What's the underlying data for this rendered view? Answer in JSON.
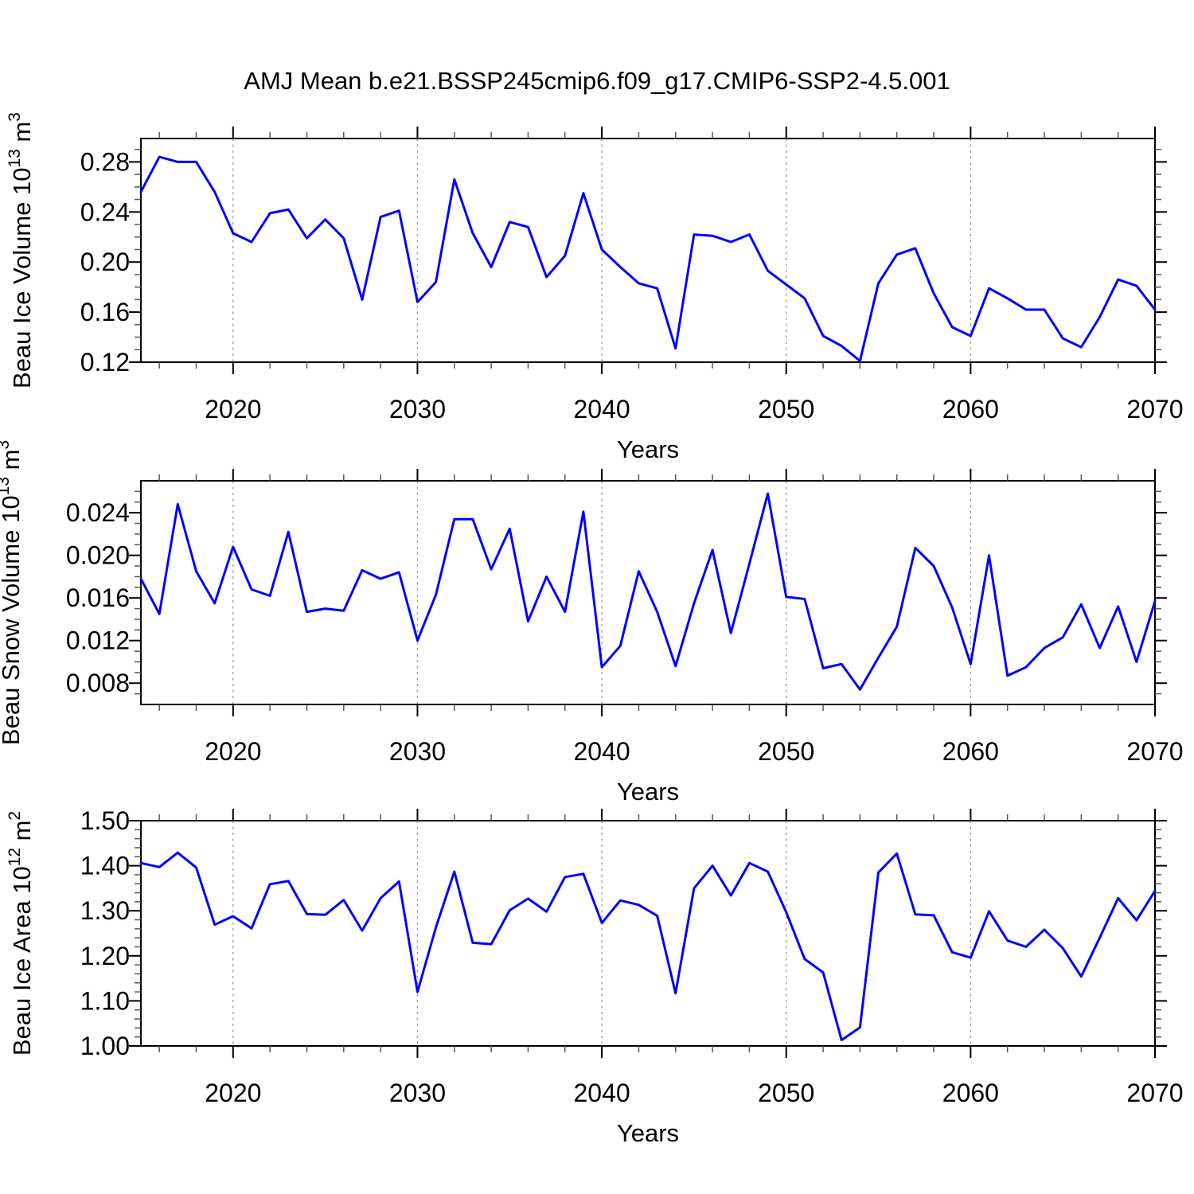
{
  "page": {
    "title": "AMJ Mean b.e21.BSSP245cmip6.f09_g17.CMIP6-SSP2-4.5.001",
    "background": "#ffffff"
  },
  "style": {
    "line_color": "#0000ff",
    "axis_color": "#000000",
    "grid_color": "#999999",
    "minor_tick_color": "#555555"
  },
  "x_axis": {
    "label": "Years",
    "years": [
      2015,
      2016,
      2017,
      2018,
      2019,
      2020,
      2021,
      2022,
      2023,
      2024,
      2025,
      2026,
      2027,
      2028,
      2029,
      2030,
      2031,
      2032,
      2033,
      2034,
      2035,
      2036,
      2037,
      2038,
      2039,
      2040,
      2041,
      2042,
      2043,
      2044,
      2045,
      2046,
      2047,
      2048,
      2049,
      2050,
      2051,
      2052,
      2053,
      2054,
      2055,
      2056,
      2057,
      2058,
      2059,
      2060,
      2061,
      2062,
      2063,
      2064,
      2065,
      2066,
      2067,
      2068,
      2069,
      2070
    ],
    "xlim": [
      2015,
      2070
    ],
    "tick_values": [
      2020,
      2030,
      2040,
      2050,
      2060,
      2070
    ],
    "tick_labels": [
      "2020",
      "2030",
      "2040",
      "2050",
      "2060",
      "2070"
    ],
    "minor_step_years": 2,
    "grid_values": [
      2020,
      2030,
      2040,
      2050,
      2060
    ]
  },
  "chart_data": [
    {
      "type": "line",
      "name": "beau-ice-volume",
      "ylabel_text": "Beau Ice Volume 10^13 m^3",
      "ylabel_parts": [
        {
          "text": "Beau Ice Volume 10"
        },
        {
          "sup": "13"
        },
        {
          "text": " m"
        },
        {
          "sup": "3"
        }
      ],
      "xlabel": "Years",
      "ylim": [
        0.12,
        0.2987
      ],
      "yticks": [
        {
          "value": 0.12,
          "label": "0.12"
        },
        {
          "value": 0.16,
          "label": "0.16"
        },
        {
          "value": 0.2,
          "label": "0.20"
        },
        {
          "value": 0.24,
          "label": "0.24"
        },
        {
          "value": 0.28,
          "label": "0.28"
        }
      ],
      "yminor_step": 0.01,
      "values": [
        0.256,
        0.284,
        0.28,
        0.28,
        0.256,
        0.223,
        0.216,
        0.239,
        0.242,
        0.219,
        0.234,
        0.219,
        0.17,
        0.236,
        0.241,
        0.168,
        0.184,
        0.266,
        0.223,
        0.196,
        0.232,
        0.228,
        0.188,
        0.205,
        0.255,
        0.21,
        0.196,
        0.183,
        0.179,
        0.131,
        0.222,
        0.221,
        0.216,
        0.222,
        0.193,
        0.182,
        0.171,
        0.141,
        0.133,
        0.121,
        0.183,
        0.206,
        0.211,
        0.175,
        0.148,
        0.141,
        0.179,
        0.171,
        0.162,
        0.162,
        0.139,
        0.132,
        0.156,
        0.186,
        0.181,
        0.162
      ]
    },
    {
      "type": "line",
      "name": "beau-snow-volume",
      "ylabel_text": "Beau Snow Volume 10^13 m^3",
      "ylabel_parts": [
        {
          "text": "Beau Snow Volume 10"
        },
        {
          "sup": "13"
        },
        {
          "text": " m"
        },
        {
          "sup": "3"
        }
      ],
      "xlabel": "Years",
      "ylim": [
        0.006,
        0.027
      ],
      "yticks": [
        {
          "value": 0.008,
          "label": "0.008"
        },
        {
          "value": 0.012,
          "label": "0.012"
        },
        {
          "value": 0.016,
          "label": "0.016"
        },
        {
          "value": 0.02,
          "label": "0.020"
        },
        {
          "value": 0.024,
          "label": "0.024"
        }
      ],
      "yminor_step": 0.001,
      "values": [
        0.0178,
        0.0145,
        0.0248,
        0.0185,
        0.0155,
        0.0208,
        0.0168,
        0.0162,
        0.0222,
        0.0147,
        0.015,
        0.0148,
        0.0186,
        0.0178,
        0.0184,
        0.012,
        0.0163,
        0.0234,
        0.0234,
        0.0187,
        0.0225,
        0.0138,
        0.018,
        0.0147,
        0.0241,
        0.0095,
        0.0115,
        0.0185,
        0.0147,
        0.0096,
        0.0155,
        0.0205,
        0.0127,
        0.0192,
        0.0258,
        0.0161,
        0.0159,
        0.0094,
        0.0098,
        0.0074,
        0.0104,
        0.0133,
        0.0207,
        0.019,
        0.0151,
        0.0098,
        0.02,
        0.0087,
        0.0095,
        0.0113,
        0.0123,
        0.0154,
        0.0113,
        0.0152,
        0.01,
        0.0157
      ]
    },
    {
      "type": "line",
      "name": "beau-ice-area",
      "ylabel_text": "Beau Ice Area 10^12 m^2",
      "ylabel_parts": [
        {
          "text": "Beau Ice Area 10"
        },
        {
          "sup": "12"
        },
        {
          "text": " m"
        },
        {
          "sup": "2"
        }
      ],
      "xlabel": "Years",
      "ylim": [
        1.0,
        1.5
      ],
      "yticks": [
        {
          "value": 1.0,
          "label": "1.00"
        },
        {
          "value": 1.1,
          "label": "1.10"
        },
        {
          "value": 1.2,
          "label": "1.20"
        },
        {
          "value": 1.3,
          "label": "1.30"
        },
        {
          "value": 1.4,
          "label": "1.40"
        },
        {
          "value": 1.5,
          "label": "1.50"
        }
      ],
      "yminor_step": 0.02,
      "values": [
        1.406,
        1.397,
        1.429,
        1.396,
        1.269,
        1.288,
        1.261,
        1.359,
        1.366,
        1.293,
        1.291,
        1.324,
        1.256,
        1.328,
        1.365,
        1.12,
        1.263,
        1.387,
        1.229,
        1.226,
        1.301,
        1.327,
        1.298,
        1.375,
        1.382,
        1.273,
        1.323,
        1.313,
        1.289,
        1.117,
        1.35,
        1.4,
        1.334,
        1.406,
        1.387,
        1.297,
        1.193,
        1.163,
        1.013,
        1.041,
        1.385,
        1.427,
        1.292,
        1.29,
        1.208,
        1.196,
        1.299,
        1.234,
        1.22,
        1.258,
        1.217,
        1.154,
        1.24,
        1.328,
        1.279,
        1.344
      ]
    }
  ]
}
